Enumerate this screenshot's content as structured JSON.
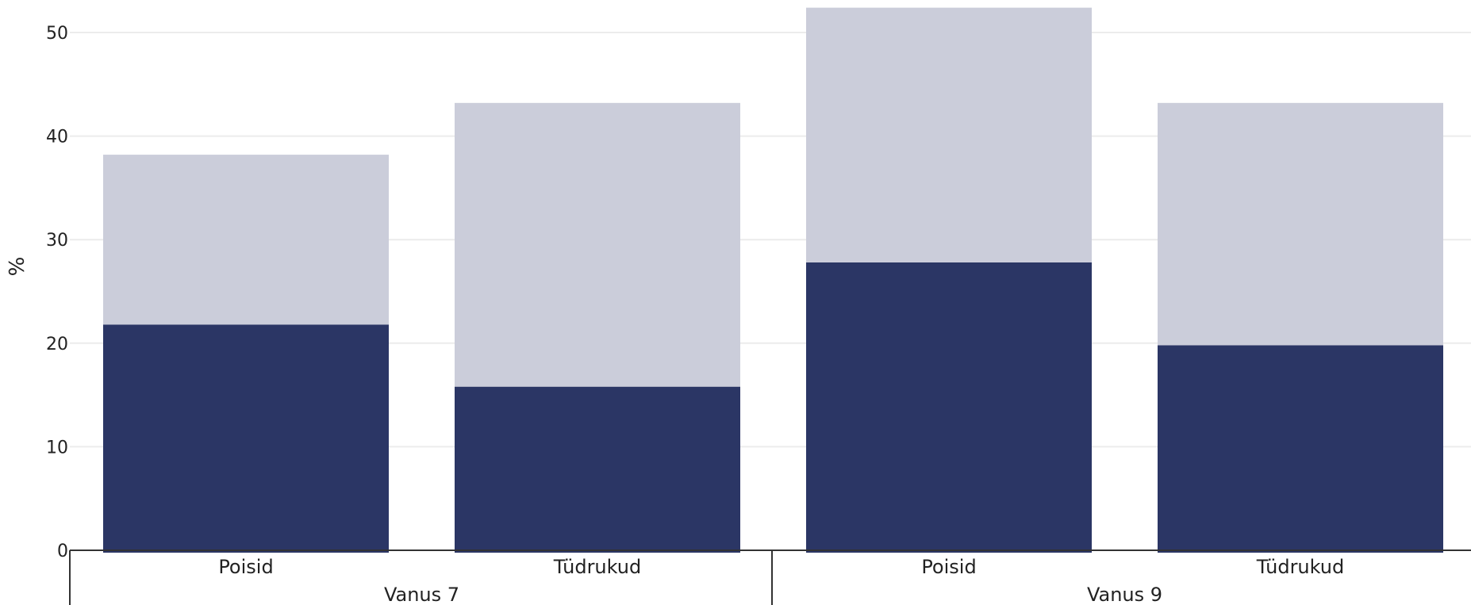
{
  "chart_data": {
    "type": "bar",
    "stacked": true,
    "ylabel": "%",
    "ylim": [
      0,
      52.5
    ],
    "yticks": [
      0,
      10,
      20,
      30,
      40,
      50
    ],
    "grid": true,
    "groups": [
      {
        "label": "Vanus 7",
        "categories": [
          "Poisid",
          "Tüdrukud"
        ]
      },
      {
        "label": "Vanus 9",
        "categories": [
          "Poisid",
          "Tüdrukud"
        ]
      }
    ],
    "series": [
      {
        "color": "#2b3665",
        "values": [
          21.8,
          15.8,
          27.8,
          19.8
        ]
      },
      {
        "color": "#cbcdda",
        "values": [
          16.4,
          27.4,
          24.6,
          23.4
        ]
      }
    ]
  }
}
